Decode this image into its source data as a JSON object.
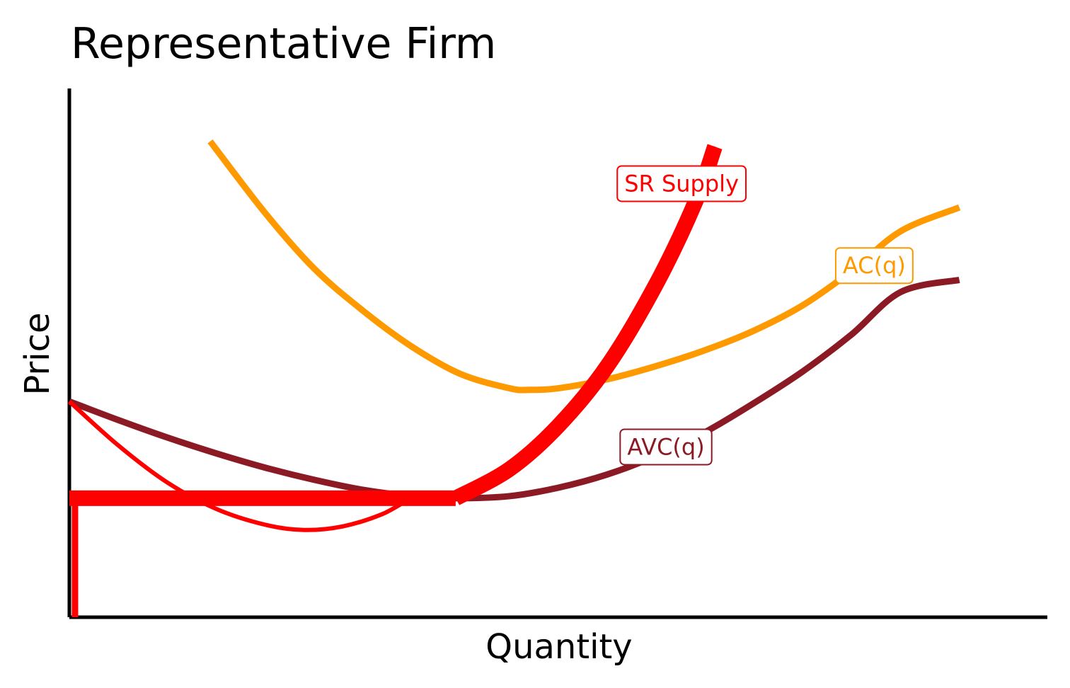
{
  "chart_data": {
    "type": "line",
    "title": "Representative Firm",
    "xlabel": "Quantity",
    "ylabel": "Price",
    "ticks": "none",
    "grid": false,
    "legend": "none",
    "xlim": [
      0,
      10
    ],
    "ylim": [
      0,
      10
    ],
    "shutdown_price": 2.25,
    "series": [
      {
        "key": "ac",
        "name": "AC(q)",
        "color": "#FF9900",
        "x": [
          1.44,
          2,
          2.5,
          3,
          3.5,
          4,
          4.5,
          4.7,
          5,
          5.5,
          6,
          6.5,
          7,
          7.5,
          8,
          8.5,
          9.1
        ],
        "y": [
          9.0,
          7.65,
          6.6,
          5.8,
          5.12,
          4.6,
          4.33,
          4.3,
          4.33,
          4.5,
          4.75,
          5.05,
          5.42,
          5.9,
          6.55,
          7.3,
          7.75
        ]
      },
      {
        "key": "avc",
        "name": "AVC(q)",
        "color": "#8B1A24",
        "x": [
          0,
          0.5,
          1,
          1.5,
          2,
          2.5,
          3,
          3.5,
          3.95,
          4.5,
          5,
          5.5,
          6,
          6.5,
          7,
          7.5,
          8,
          8.5,
          9.1
        ],
        "y": [
          4.08,
          3.73,
          3.4,
          3.1,
          2.83,
          2.6,
          2.41,
          2.29,
          2.25,
          2.29,
          2.45,
          2.7,
          3.05,
          3.5,
          4.05,
          4.65,
          5.35,
          6.15,
          6.38
        ]
      },
      {
        "key": "mc",
        "name": "SR Supply",
        "color": "#FF0000",
        "x": [
          0,
          0.5,
          1,
          1.5,
          2,
          2.4,
          2.8,
          3.2,
          3.6,
          3.95,
          4.5,
          5,
          5.5,
          6,
          6.4,
          6.6
        ],
        "y": [
          4.08,
          3.25,
          2.55,
          2.05,
          1.75,
          1.65,
          1.72,
          1.95,
          2.32,
          2.25,
          2.8,
          3.62,
          4.75,
          6.3,
          7.85,
          8.9
        ]
      }
    ],
    "supply_curve": {
      "name": "SR Supply",
      "color": "#FF0000",
      "shutdown_segment": {
        "q0": 0,
        "p_range": [
          0,
          2.25
        ]
      },
      "flat_segment": {
        "price": 2.25,
        "q_range": [
          0,
          3.95
        ]
      },
      "rising_segment_starts_at_q": 3.95
    },
    "labels": [
      {
        "text": "SR Supply",
        "series": "mc",
        "color": "#FF0000",
        "at_x": 6.26,
        "at_y": 8.2
      },
      {
        "text": "AC(q)",
        "series": "ac",
        "color": "#FF9900",
        "at_x": 8.23,
        "at_y": 6.65
      },
      {
        "text": "AVC(q)",
        "series": "avc",
        "color": "#8B1A24",
        "at_x": 6.1,
        "at_y": 3.22
      }
    ]
  }
}
